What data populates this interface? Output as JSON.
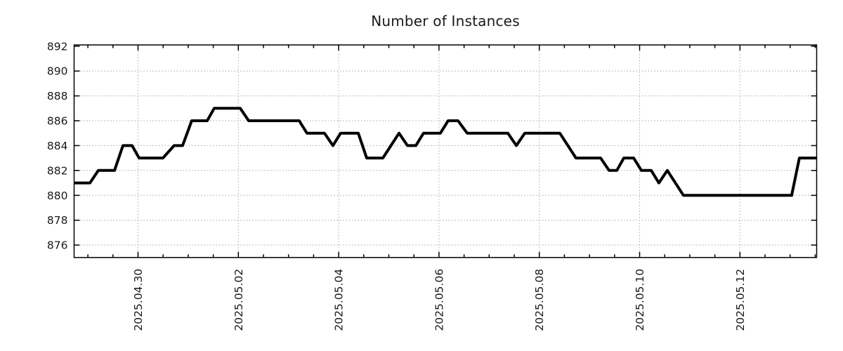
{
  "page": {
    "background": "#ffffff"
  },
  "chart_data": {
    "type": "line",
    "title": "Number of Instances",
    "legend": "none",
    "grid": "dotted",
    "colors": {
      "line": "#000000",
      "grid": "#a6a6a6",
      "axis": "#000000",
      "text": "#1a1a1a"
    },
    "x_axis": {
      "kind": "time",
      "unit": "days_since_2025-04-30",
      "range": [
        -1.274,
        13.53
      ],
      "major_ticks": [
        0,
        2,
        4,
        6,
        8,
        10,
        12
      ],
      "major_tick_labels": [
        "2025.04.30",
        "2025.05.02",
        "2025.05.04",
        "2025.05.06",
        "2025.05.08",
        "2025.05.10",
        "2025.05.12"
      ],
      "minor_tick_step": 0.5
    },
    "y_axis": {
      "range": [
        875.0,
        892.1
      ],
      "major_ticks": [
        876,
        878,
        880,
        882,
        884,
        886,
        888,
        890,
        892
      ],
      "major_tick_labels": [
        "876",
        "878",
        "880",
        "882",
        "884",
        "886",
        "888",
        "890",
        "892"
      ]
    },
    "series": [
      {
        "color": "#000000",
        "points": [
          [
            -1.274,
            881
          ],
          [
            -0.959,
            881
          ],
          [
            -0.791,
            882
          ],
          [
            -0.469,
            882
          ],
          [
            -0.301,
            884
          ],
          [
            -0.119,
            884
          ],
          [
            0.021,
            883
          ],
          [
            0.497,
            883
          ],
          [
            0.721,
            884
          ],
          [
            0.889,
            884
          ],
          [
            1.071,
            886
          ],
          [
            1.379,
            886
          ],
          [
            1.519,
            887
          ],
          [
            2.038,
            887
          ],
          [
            2.206,
            886
          ],
          [
            3.214,
            886
          ],
          [
            3.368,
            885
          ],
          [
            3.718,
            885
          ],
          [
            3.886,
            884
          ],
          [
            4.04,
            885
          ],
          [
            4.391,
            885
          ],
          [
            4.559,
            883
          ],
          [
            4.881,
            883
          ],
          [
            5.203,
            885
          ],
          [
            5.371,
            884
          ],
          [
            5.539,
            884
          ],
          [
            5.693,
            885
          ],
          [
            6.029,
            885
          ],
          [
            6.183,
            886
          ],
          [
            6.38,
            886
          ],
          [
            6.562,
            885
          ],
          [
            7.374,
            885
          ],
          [
            7.542,
            884
          ],
          [
            7.71,
            885
          ],
          [
            8.41,
            885
          ],
          [
            8.732,
            883
          ],
          [
            9.223,
            883
          ],
          [
            9.391,
            882
          ],
          [
            9.545,
            882
          ],
          [
            9.685,
            883
          ],
          [
            9.881,
            883
          ],
          [
            10.035,
            882
          ],
          [
            10.231,
            882
          ],
          [
            10.385,
            881
          ],
          [
            10.553,
            882
          ],
          [
            10.875,
            880
          ],
          [
            13.032,
            880
          ],
          [
            13.186,
            883
          ],
          [
            13.53,
            883
          ]
        ]
      }
    ]
  }
}
